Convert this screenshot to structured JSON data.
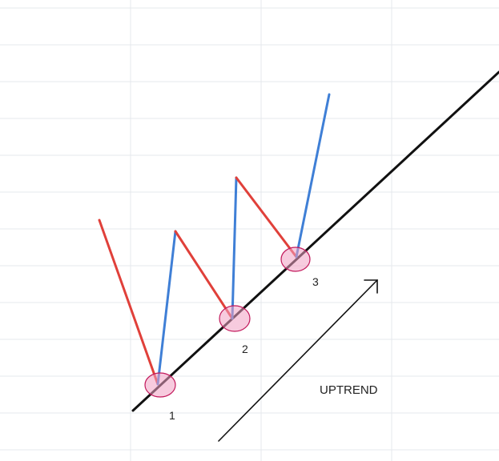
{
  "diagram": {
    "points": [
      {
        "label": "1"
      },
      {
        "label": "2"
      },
      {
        "label": "3"
      }
    ],
    "trend_label": "UPTREND",
    "colors": {
      "trend_line": "#111111",
      "down_segment": "#e0403a",
      "up_segment": "#3f7fd6",
      "touch_fill": "#f0a0c3",
      "grid": "#e6e9ec"
    }
  }
}
